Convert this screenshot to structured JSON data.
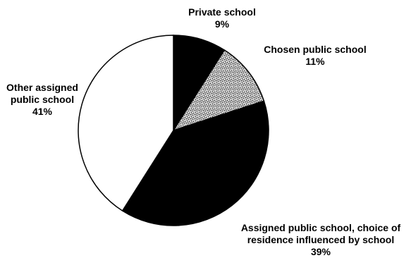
{
  "chart_data": {
    "type": "pie",
    "slices": [
      {
        "label_lines": [
          "Private school"
        ],
        "value": 9,
        "value_text": "9%",
        "fill": "#000000"
      },
      {
        "label_lines": [
          "Chosen public school"
        ],
        "value": 11,
        "value_text": "11%",
        "fill": "speckled-gray"
      },
      {
        "label_lines": [
          "Assigned public school, choice of",
          "residence influenced by school"
        ],
        "value": 39,
        "value_text": "39%",
        "fill": "#000000"
      },
      {
        "label_lines": [
          "Other assigned",
          "public school"
        ],
        "value": 41,
        "value_text": "41%",
        "fill": "#ffffff"
      }
    ],
    "start": "12 o'clock",
    "direction": "clockwise",
    "legend": "none"
  }
}
